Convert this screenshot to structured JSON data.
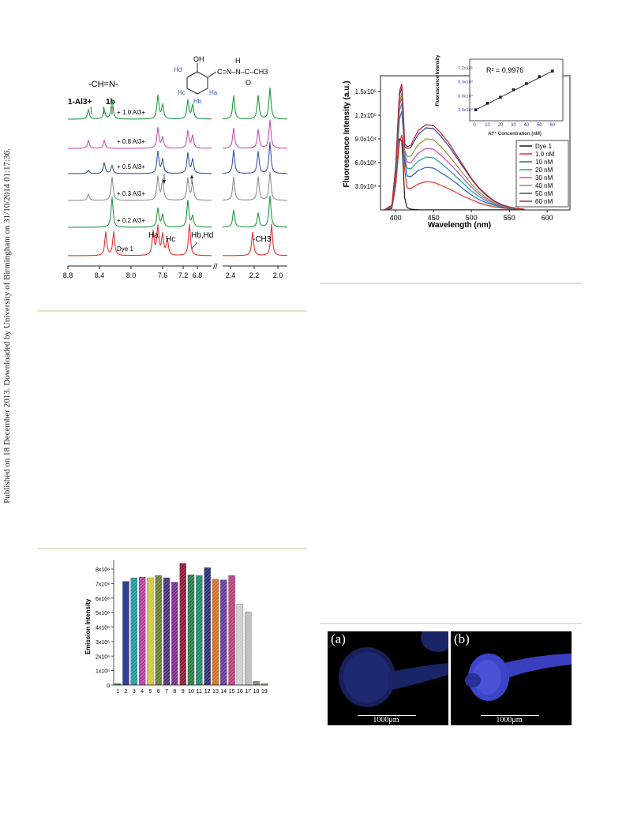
{
  "side_note": "Published on 18 December 2013. Downloaded by University of Birmingham on 31/10/2014 01:17:36.",
  "nmr_figure": {
    "imine_label": "-CH=N-",
    "complex_label": "1-Al3+",
    "ligand_label": "1b",
    "structure": {
      "oh": "OH",
      "chain": "C=N–N–C–CH3",
      "h_nh": "H",
      "carbonyl_o": "O",
      "ha": "Ha",
      "hb": "Hb",
      "hc": "Hc",
      "hd": "Hd"
    },
    "trace_labels": [
      "+ 1.0 Al3+",
      "+ 0.8 Al3+",
      "+ 0.5 Al3+",
      "+ 0.3 Al3+",
      "+ 0.2 Al3+",
      "Dye 1"
    ],
    "trace_colors": [
      "#1f9a3e",
      "#c94fb2",
      "#3a55a8",
      "#8f8f8f",
      "#1f9a3e",
      "#e0332f"
    ],
    "peak_labels": {
      "ha": "Ha",
      "hc": "Hc",
      "hbhd": "Hb,Hd",
      "ch3": "-CH3"
    },
    "x_ticks": [
      "8.8",
      "8.4",
      "8.0",
      "7.6",
      "7.2",
      "6.8",
      "2.4",
      "2.2",
      "2.0"
    ],
    "axis_break": "//"
  },
  "fluor_figure": {
    "chart_data": {
      "type": "line",
      "ylabel": "Fluorescence Intensity (a.u.)",
      "xlabel": "Wavelength (nm)",
      "xlim": [
        380,
        630
      ],
      "ylim": [
        0,
        170000
      ],
      "x_ticks": [
        "400",
        "450",
        "500",
        "550",
        "600"
      ],
      "y_ticks": [
        "3.0x10⁴",
        "6.0x10⁴",
        "9.0x10⁴",
        "1.2x10⁵",
        "1.5x10⁵"
      ],
      "x": [
        385,
        395,
        400,
        405,
        408,
        410,
        412,
        415,
        420,
        425,
        430,
        440,
        450,
        460,
        470,
        480,
        490,
        500,
        510,
        520,
        530,
        540,
        550,
        560,
        570
      ],
      "legend_position": "lower-right",
      "series": [
        {
          "name": "Dye 1",
          "color": "#1a1a1a",
          "values": [
            0,
            2000,
            30000,
            90000,
            88000,
            55000,
            15000,
            3000,
            1000,
            500,
            300,
            200,
            200,
            200,
            200,
            200,
            200,
            200,
            200,
            200,
            200,
            200,
            200,
            200,
            200
          ]
        },
        {
          "name": "1.0 nM",
          "color": "#e0332f",
          "values": [
            0,
            3000,
            30000,
            85000,
            95000,
            80000,
            50000,
            28000,
            27000,
            30000,
            33000,
            36000,
            35000,
            31000,
            27000,
            22000,
            17000,
            13000,
            9000,
            6000,
            4000,
            2500,
            1500,
            800,
            400
          ]
        },
        {
          "name": "10 nM",
          "color": "#2f62b8",
          "values": [
            0,
            4000,
            40000,
            115000,
            125000,
            100000,
            62000,
            43000,
            42000,
            46000,
            50000,
            54000,
            53000,
            47000,
            41000,
            34000,
            26000,
            19000,
            13000,
            9000,
            6000,
            3500,
            2000,
            1000,
            500
          ]
        },
        {
          "name": "20 nM",
          "color": "#1fa3a0",
          "values": [
            0,
            4000,
            45000,
            125000,
            135000,
            108000,
            68000,
            53000,
            52000,
            57000,
            62000,
            67000,
            66000,
            59000,
            51000,
            42000,
            33000,
            24000,
            17000,
            11000,
            7000,
            4500,
            2500,
            1200,
            600
          ]
        },
        {
          "name": "30 nM",
          "color": "#cc4fb0",
          "values": [
            0,
            5000,
            48000,
            132000,
            142000,
            113000,
            72000,
            61000,
            60000,
            66000,
            72000,
            78000,
            77000,
            69000,
            60000,
            50000,
            39000,
            29000,
            20000,
            13000,
            8500,
            5000,
            3000,
            1500,
            700
          ]
        },
        {
          "name": "40 nM",
          "color": "#8a9a3a",
          "values": [
            0,
            5000,
            50000,
            135000,
            148000,
            118000,
            75000,
            68000,
            68000,
            76000,
            83000,
            90000,
            89000,
            80000,
            69000,
            57000,
            45000,
            33000,
            23000,
            15000,
            9500,
            5500,
            3200,
            1600,
            800
          ]
        },
        {
          "name": "50 nM",
          "color": "#3a3f9a",
          "values": [
            0,
            5500,
            52000,
            145000,
            155000,
            123000,
            80000,
            78000,
            79000,
            88000,
            96000,
            104000,
            103000,
            93000,
            81000,
            67000,
            53000,
            39000,
            27000,
            18000,
            11000,
            6500,
            3600,
            1800,
            900
          ]
        },
        {
          "name": "60 nM",
          "color": "#b8202a",
          "values": [
            0,
            6000,
            55000,
            150000,
            160000,
            128000,
            84000,
            80000,
            82000,
            92000,
            101000,
            108000,
            107000,
            97000,
            85000,
            70000,
            55000,
            40000,
            28000,
            19000,
            11500,
            6800,
            3800,
            1900,
            900
          ]
        }
      ]
    },
    "inset": {
      "r2_label": "R² = 0.9976",
      "ylabel": "Fluorescence Intensity",
      "xlabel": "Al³⁺ Concentration (nM)",
      "x_ticks": [
        "0",
        "10",
        "20",
        "30",
        "40",
        "50",
        "60"
      ],
      "y_ticks": [
        "3.0x10⁴",
        "6.0x10⁴",
        "9.0x10⁴",
        "1.2x10⁵"
      ],
      "chart_data": {
        "type": "scatter",
        "x": [
          1,
          10,
          20,
          30,
          40,
          50,
          60
        ],
        "y": [
          30000,
          44000,
          57000,
          73000,
          86000,
          101000,
          113000
        ],
        "xlim": [
          0,
          65
        ],
        "ylim": [
          15000,
          130000
        ],
        "fit_line": true
      }
    }
  },
  "bar_figure": {
    "chart_data": {
      "type": "bar",
      "ylabel": "Emission Intensity",
      "categories": [
        "1",
        "2",
        "3",
        "4",
        "5",
        "6",
        "7",
        "8",
        "9",
        "10",
        "11",
        "12",
        "13",
        "14",
        "15",
        "16",
        "17",
        "18",
        "19"
      ],
      "values": [
        100000,
        7150000,
        7400000,
        7450000,
        7400000,
        7550000,
        7400000,
        7100000,
        8400000,
        7600000,
        7550000,
        8100000,
        7300000,
        7250000,
        7550000,
        5600000,
        5050000,
        250000,
        100000
      ],
      "colors": [
        "#2a9d4a",
        "#2f3f96",
        "#1c9aa0",
        "#b43fa0",
        "#d3c44a",
        "#6b7d33",
        "#4a2f7a",
        "#7a2f8a",
        "#8a1a3a",
        "#2a7a4a",
        "#1f8a6a",
        "#2a2f7a",
        "#d0702a",
        "#6a3a9a",
        "#c23a7a",
        "#cfcfcf",
        "#bdbdbd",
        "#8a8a8a",
        "#7aa04a"
      ],
      "hatched": [
        false,
        false,
        true,
        true,
        true,
        true,
        true,
        true,
        true,
        true,
        true,
        true,
        true,
        true,
        true,
        true,
        true,
        false,
        true
      ],
      "y_ticks": [
        "0",
        "1x10⁶",
        "2x10⁶",
        "3x10⁶",
        "4x10⁶",
        "5x10⁶",
        "6x10⁶",
        "7x10⁶",
        "8x10⁶"
      ],
      "ylim": [
        0,
        8600000
      ]
    }
  },
  "zebrafish_figure": {
    "panel_a_label": "(a)",
    "panel_b_label": "(b)",
    "scale_text_a": "1000μm",
    "scale_text_b": "1000μm"
  }
}
